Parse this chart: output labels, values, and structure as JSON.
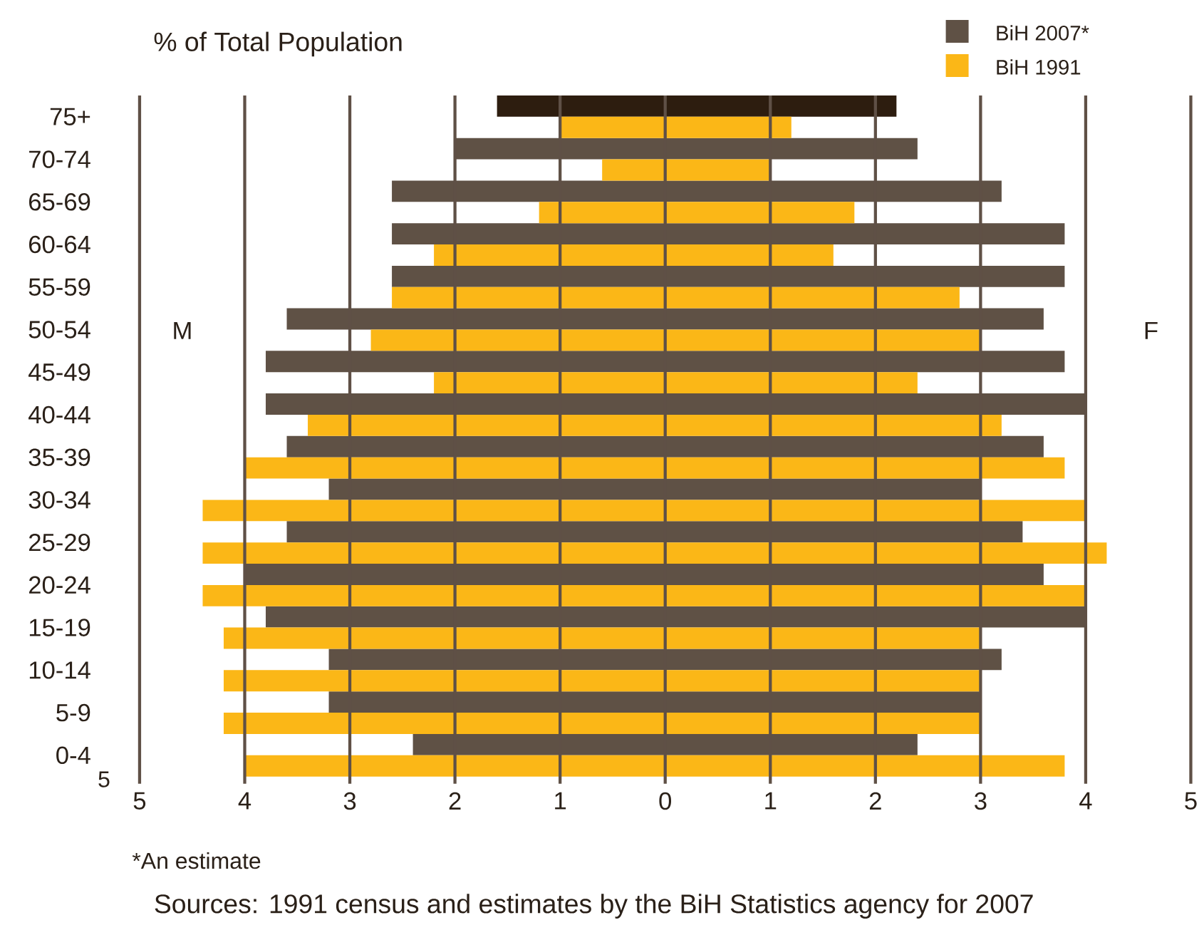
{
  "chart_data": {
    "type": "bar",
    "orientation": "horizontal",
    "title": "% of Total Population",
    "categories": [
      "75+",
      "70-74",
      "65-69",
      "60-64",
      "55-59",
      "50-54",
      "45-49",
      "40-44",
      "35-39",
      "30-34",
      "25-29",
      "20-24",
      "15-19",
      "10-14",
      "5-9",
      "0-4"
    ],
    "series": [
      {
        "name": "BiH 2007*",
        "color": "#5f5145",
        "colors": [
          "#2d1d0f",
          "#5f5145",
          "#5f5145",
          "#5f5145",
          "#5f5145",
          "#5f5145",
          "#5f5145",
          "#5f5145",
          "#5f5145",
          "#5f5145",
          "#5f5145",
          "#5f5145",
          "#5f5145",
          "#5f5145",
          "#5f5145",
          "#5f5145"
        ],
        "base": [
          -1.6,
          -2.0,
          -2.6,
          -2.6,
          -2.6,
          -3.6,
          -3.8,
          -3.8,
          -3.6,
          -3.2,
          -3.6,
          -4.0,
          -3.8,
          -3.2,
          -3.2,
          -2.4
        ],
        "values": [
          3.8,
          4.4,
          5.8,
          6.4,
          6.4,
          7.2,
          7.6,
          7.8,
          7.2,
          6.2,
          7.0,
          7.6,
          7.8,
          6.4,
          6.2,
          4.8
        ]
      },
      {
        "name": "BiH 1991",
        "color": "#fbb717",
        "base": [
          -1.0,
          -0.6,
          -1.2,
          -2.2,
          -2.6,
          -2.8,
          -2.2,
          -3.4,
          -4.0,
          -4.4,
          -4.4,
          -4.4,
          -4.2,
          -4.2,
          -4.2,
          -4.0
        ],
        "values": [
          2.2,
          1.6,
          3.0,
          3.8,
          5.4,
          5.8,
          4.6,
          6.6,
          7.8,
          8.4,
          8.6,
          8.4,
          7.2,
          7.2,
          7.2,
          7.8
        ]
      }
    ],
    "xlim": [
      -5,
      5
    ],
    "xticks": [
      {
        "value": -5,
        "label": "5"
      },
      {
        "value": -4,
        "label": "4"
      },
      {
        "value": -3,
        "label": "3"
      },
      {
        "value": -2,
        "label": "2"
      },
      {
        "value": -1,
        "label": "1"
      },
      0,
      1,
      2,
      3,
      4,
      5
    ],
    "grid": "x",
    "legend": "top right",
    "annotations": [
      "M",
      "F",
      "5",
      "*An estimate",
      "Sources: 1991 census and estimates by the BiH Statistics agency for 2007"
    ]
  }
}
